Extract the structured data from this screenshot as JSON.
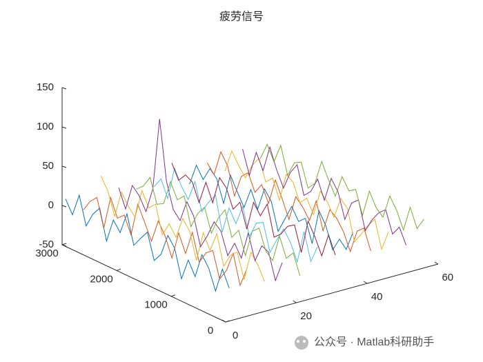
{
  "chart_data": {
    "type": "line3d",
    "title": "疲劳信号",
    "xlim": [
      0,
      60
    ],
    "xticks": [
      0,
      20,
      40,
      60
    ],
    "ylim": [
      0,
      3000
    ],
    "yticks": [
      0,
      1000,
      2000,
      3000
    ],
    "zlim": [
      -50,
      150
    ],
    "zticks": [
      -50,
      0,
      50,
      100,
      150
    ],
    "y": [
      0,
      125,
      250,
      375,
      500,
      625,
      750,
      875,
      1000,
      1125,
      1250,
      1375,
      1500,
      1625,
      1750,
      1875,
      2000,
      2125,
      2250,
      2375,
      2500,
      2625,
      2750,
      2875,
      3000
    ],
    "series": [
      {
        "x": 1,
        "color": "#0072BD",
        "values": [
          -8,
          12,
          -20,
          5,
          18,
          -14,
          3,
          -25,
          10,
          22,
          -6,
          -18,
          14,
          2,
          -11,
          25,
          -3,
          9,
          -22,
          16,
          4,
          -15,
          20,
          -9,
          7
        ]
      },
      {
        "x": 6,
        "color": "#D95319",
        "values": [
          10,
          -15,
          22,
          -4,
          -19,
          13,
          6,
          -10,
          24,
          -7,
          15,
          -21,
          3,
          18,
          -12,
          8,
          27,
          -16,
          5,
          -3,
          19,
          -24,
          11,
          2,
          -13
        ]
      },
      {
        "x": 11,
        "color": "#EDB120",
        "values": [
          -12,
          5,
          17,
          -22,
          9,
          1,
          -17,
          20,
          -5,
          13,
          -26,
          7,
          19,
          -9,
          4,
          -14,
          21,
          12,
          30,
          -8,
          2,
          16,
          -19,
          9,
          24
        ]
      },
      {
        "x": 16,
        "color": "#7E2F8E",
        "values": [
          6,
          -21,
          11,
          15,
          -8,
          23,
          -13,
          2,
          -18,
          9,
          17,
          -5,
          -23,
          12,
          26,
          -2,
          8,
          40,
          115,
          22,
          -11,
          5,
          14,
          -20,
          3
        ]
      },
      {
        "x": 21,
        "color": "#77AC30",
        "values": [
          -17,
          8,
          -3,
          21,
          -14,
          -6,
          19,
          11,
          -24,
          4,
          -9,
          22,
          7,
          -16,
          13,
          1,
          -20,
          15,
          6,
          25,
          -7,
          -12,
          18,
          3,
          -5
        ]
      },
      {
        "x": 26,
        "color": "#4DBEEE",
        "values": [
          14,
          -9,
          25,
          -18,
          3,
          16,
          -2,
          -22,
          12,
          7,
          -14,
          20,
          -6,
          10,
          -25,
          18,
          5,
          -11,
          23,
          -4,
          9,
          28,
          -15,
          6,
          -8
        ]
      },
      {
        "x": 31,
        "color": "#A2142F",
        "values": [
          -3,
          19,
          -12,
          8,
          24,
          -20,
          11,
          5,
          -9,
          -17,
          21,
          2,
          15,
          -23,
          7,
          -6,
          17,
          26,
          -10,
          12,
          -18,
          4,
          9,
          -2,
          16
        ]
      },
      {
        "x": 36,
        "color": "#0072BD",
        "values": [
          20,
          -6,
          3,
          -15,
          12,
          27,
          -19,
          9,
          1,
          16,
          -4,
          -24,
          10,
          22,
          -8,
          13,
          -14,
          2,
          19,
          -21,
          6,
          15,
          -3,
          11,
          -17
        ]
      },
      {
        "x": 41,
        "color": "#D95319",
        "values": [
          -10,
          15,
          7,
          -23,
          -2,
          11,
          18,
          -13,
          21,
          -8,
          5,
          14,
          -19,
          3,
          23,
          -11,
          9,
          -5,
          16,
          7,
          -22,
          12,
          26,
          -7,
          4
        ]
      },
      {
        "x": 46,
        "color": "#EDB120",
        "values": [
          8,
          -18,
          16,
          4,
          -11,
          -25,
          13,
          22,
          -6,
          10,
          19,
          -15,
          2,
          -8,
          14,
          20,
          -17,
          7,
          -2,
          24,
          11,
          -9,
          3,
          17,
          -13
        ]
      },
      {
        "x": 51,
        "color": "#7E2F8E",
        "values": [
          -15,
          4,
          -9,
          18,
          10,
          -3,
          -21,
          14,
          6,
          -19,
          12,
          25,
          -7,
          16,
          -4,
          -13,
          22,
          8,
          -16,
          3,
          28,
          -6,
          13,
          -20,
          9
        ]
      },
      {
        "x": 56,
        "color": "#77AC30",
        "values": [
          12,
          -4,
          19,
          -14,
          7,
          21,
          -10,
          -2,
          15,
          -20,
          9,
          3,
          17,
          -12,
          5,
          24,
          -8,
          -18,
          11,
          6,
          -14,
          20,
          -5,
          13,
          -9
        ]
      }
    ],
    "watermark": "公众号 · Matlab科研助手"
  }
}
